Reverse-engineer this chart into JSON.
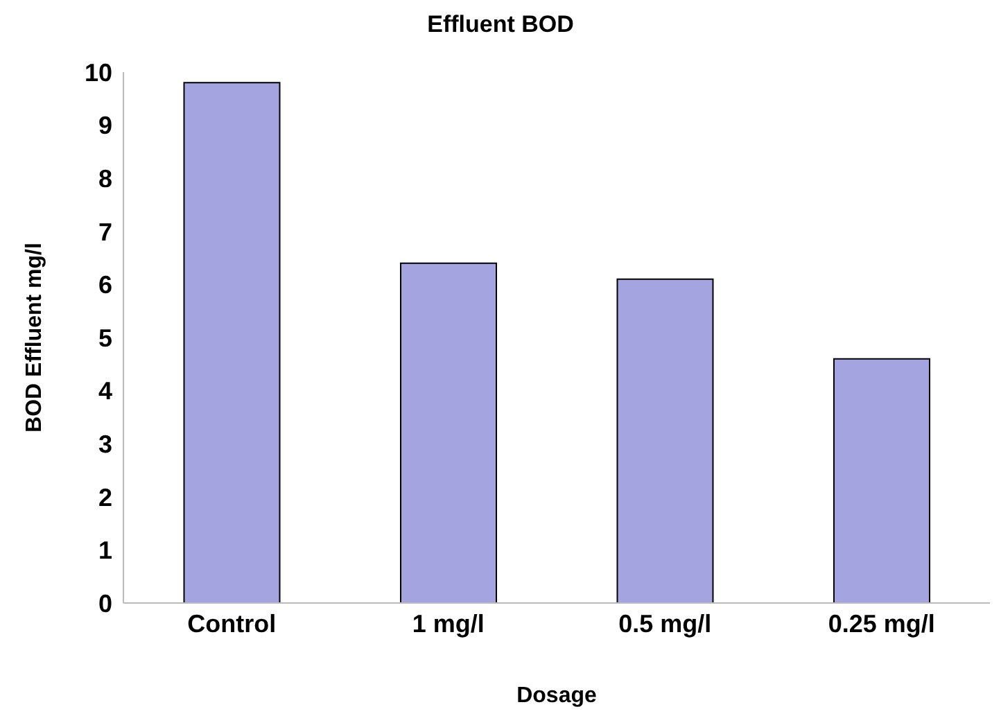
{
  "chart_data": {
    "type": "bar",
    "title": "Effluent BOD",
    "xlabel": "Dosage",
    "ylabel": "BOD Effluent mg/l",
    "categories": [
      "Control",
      "1 mg/l",
      "0.5 mg/l",
      "0.25 mg/l"
    ],
    "values": [
      9.8,
      6.4,
      6.1,
      4.6
    ],
    "color": "#a4a4e0",
    "ylim": [
      0,
      10
    ],
    "yticks": [
      0,
      1,
      2,
      3,
      4,
      5,
      6,
      7,
      8,
      9,
      10
    ],
    "grid": false
  }
}
